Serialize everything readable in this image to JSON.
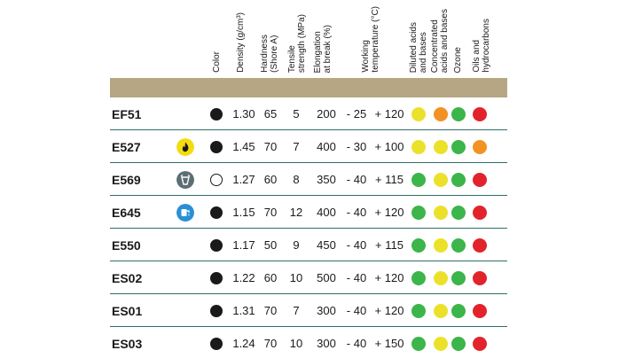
{
  "header": {
    "columns": [
      {
        "key": "color",
        "label": "Color"
      },
      {
        "key": "density",
        "label": "Density (g/cm³)"
      },
      {
        "key": "hardness",
        "label": "Hardness\n(Shore A)"
      },
      {
        "key": "tensile",
        "label": "Tensile\nstrength (MPa)"
      },
      {
        "key": "elongation",
        "label": "Elongation\nat break (%)"
      },
      {
        "key": "working",
        "label": "Working\ntemperature (°C)"
      },
      {
        "key": "diluted",
        "label": "Diluted acids\nand bases"
      },
      {
        "key": "concentrated",
        "label": "Concentrated\nacids and bases"
      },
      {
        "key": "ozone",
        "label": "Ozone"
      },
      {
        "key": "oils",
        "label": "Oils and\nhydrocarbons"
      }
    ]
  },
  "colors": {
    "band": "#b6a684",
    "divider": "#2f6d6a",
    "green": "#3cb54a",
    "yellow": "#ece12a",
    "orange": "#f39224",
    "red": "#e2232b",
    "black": "#1a1a1a",
    "white": "#ffffff"
  },
  "rows": [
    {
      "code": "EF51",
      "icon": "none",
      "swatch": "black",
      "density": "1.30",
      "hardness": "65",
      "tensile": "5",
      "elongation": "200",
      "temp_min": "- 25",
      "temp_max": "+ 120",
      "resistance": [
        "yellow",
        "orange",
        "green",
        "red"
      ]
    },
    {
      "code": "E527",
      "icon": "flame-icon",
      "swatch": "black",
      "density": "1.45",
      "hardness": "70",
      "tensile": "7",
      "elongation": "400",
      "temp_min": "- 30",
      "temp_max": "+ 100",
      "resistance": [
        "yellow",
        "yellow",
        "green",
        "orange"
      ]
    },
    {
      "code": "E569",
      "icon": "food-contact-icon",
      "swatch": "white",
      "density": "1.27",
      "hardness": "60",
      "tensile": "8",
      "elongation": "350",
      "temp_min": "- 40",
      "temp_max": "+ 115",
      "resistance": [
        "green",
        "yellow",
        "green",
        "red"
      ]
    },
    {
      "code": "E645",
      "icon": "drinking-water-icon",
      "swatch": "black",
      "density": "1.15",
      "hardness": "70",
      "tensile": "12",
      "elongation": "400",
      "temp_min": "- 40",
      "temp_max": "+ 120",
      "resistance": [
        "green",
        "yellow",
        "green",
        "red"
      ]
    },
    {
      "code": "E550",
      "icon": "none",
      "swatch": "black",
      "density": "1.17",
      "hardness": "50",
      "tensile": "9",
      "elongation": "450",
      "temp_min": "- 40",
      "temp_max": "+ 115",
      "resistance": [
        "green",
        "yellow",
        "green",
        "red"
      ]
    },
    {
      "code": "ES02",
      "icon": "none",
      "swatch": "black",
      "density": "1.22",
      "hardness": "60",
      "tensile": "10",
      "elongation": "500",
      "temp_min": "- 40",
      "temp_max": "+ 120",
      "resistance": [
        "green",
        "yellow",
        "green",
        "red"
      ]
    },
    {
      "code": "ES01",
      "icon": "none",
      "swatch": "black",
      "density": "1.31",
      "hardness": "70",
      "tensile": "7",
      "elongation": "300",
      "temp_min": "- 40",
      "temp_max": "+ 120",
      "resistance": [
        "green",
        "yellow",
        "green",
        "red"
      ]
    },
    {
      "code": "ES03",
      "icon": "none",
      "swatch": "black",
      "density": "1.24",
      "hardness": "70",
      "tensile": "10",
      "elongation": "300",
      "temp_min": "- 40",
      "temp_max": "+ 150",
      "resistance": [
        "green",
        "yellow",
        "green",
        "red"
      ]
    }
  ]
}
